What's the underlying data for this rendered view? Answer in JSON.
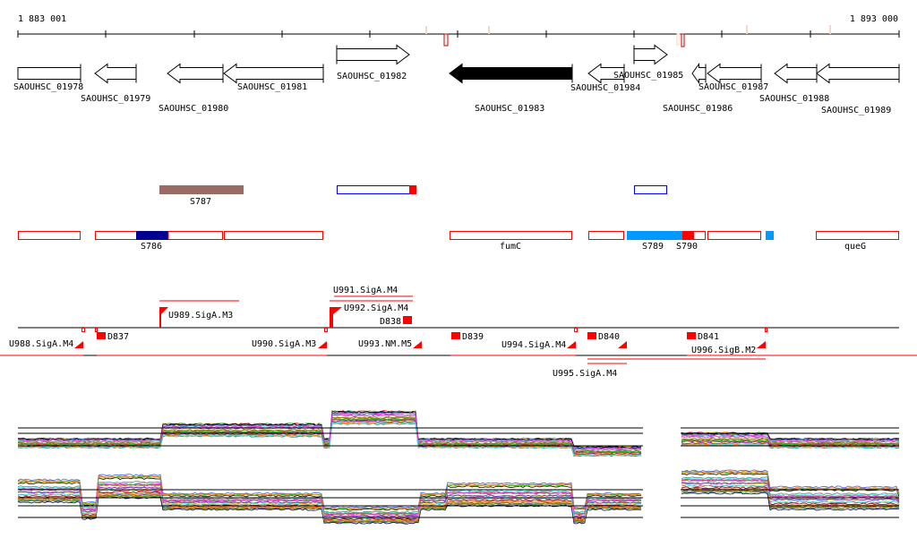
{
  "ruler": {
    "start_label": "1 883 001",
    "end_label": "1 893 000"
  },
  "genes": [
    {
      "id": "SAOUHSC_01978",
      "strand": "box"
    },
    {
      "id": "SAOUHSC_01979",
      "strand": "-"
    },
    {
      "id": "SAOUHSC_01980",
      "strand": "-"
    },
    {
      "id": "SAOUHSC_01981",
      "strand": "-"
    },
    {
      "id": "SAOUHSC_01982",
      "strand": "+"
    },
    {
      "id": "SAOUHSC_01983",
      "strand": "-",
      "highlighted": true
    },
    {
      "id": "SAOUHSC_01984",
      "strand": "-"
    },
    {
      "id": "SAOUHSC_01985",
      "strand": "+"
    },
    {
      "id": "SAOUHSC_01986",
      "strand": "-"
    },
    {
      "id": "SAOUHSC_01987",
      "strand": "-"
    },
    {
      "id": "SAOUHSC_01988",
      "strand": "-"
    },
    {
      "id": "SAOUHSC_01989",
      "strand": "-"
    }
  ],
  "segments_upper": [
    {
      "label": "S787"
    }
  ],
  "segments_lower": [
    {
      "label": "S786"
    },
    {
      "label": "fumC"
    },
    {
      "label": "S789"
    },
    {
      "label": "S790"
    },
    {
      "label": "queG"
    }
  ],
  "regulatory": [
    {
      "label": "U988.SigA.M4"
    },
    {
      "label": "D837"
    },
    {
      "label": "U989.SigA.M3"
    },
    {
      "label": "U990.SigA.M3"
    },
    {
      "label": "U991.SigA.M4"
    },
    {
      "label": "U992.SigA.M4"
    },
    {
      "label": "D838"
    },
    {
      "label": "U993.NM.M5"
    },
    {
      "label": "D839"
    },
    {
      "label": "U994.SigA.M4"
    },
    {
      "label": "U995.SigA.M4"
    },
    {
      "label": "D840"
    },
    {
      "label": "D841"
    },
    {
      "label": "U996.SigB.M2"
    }
  ],
  "colors": {
    "feature_outline": "#ff0000",
    "s787": "#9a6a66",
    "s786": "#000090",
    "s789": "#0099ff",
    "blue_outline": "#0000ff",
    "gene_fill_highlight": "#000000"
  }
}
